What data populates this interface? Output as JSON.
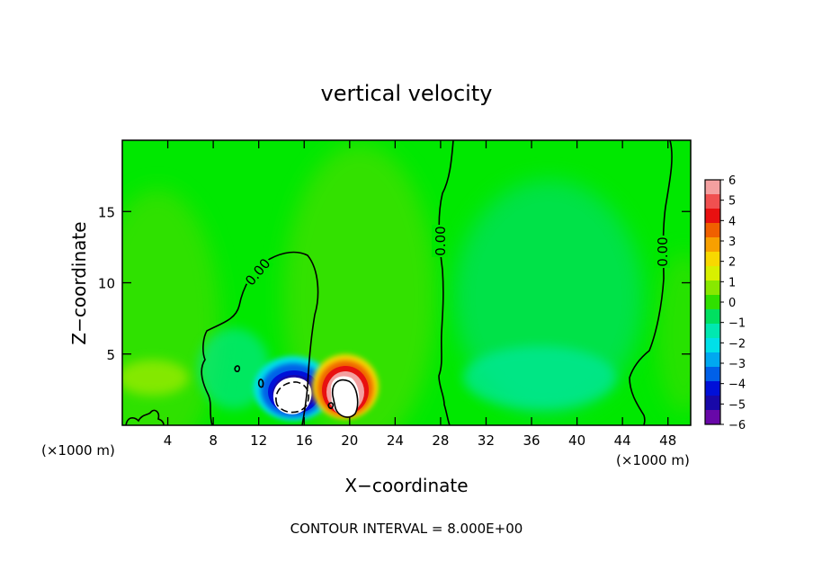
{
  "chart_data": {
    "type": "heatmap",
    "title": "vertical velocity",
    "xlabel": "X−coordinate",
    "ylabel": "Z−coordinate",
    "x_unit_label": "(×1000 m)",
    "x_unit_label_right": "(×1000 m)",
    "footer": "CONTOUR INTERVAL = 8.000E+00",
    "xlim": [
      0,
      50
    ],
    "ylim": [
      0,
      20
    ],
    "x_ticks": [
      4,
      8,
      12,
      16,
      20,
      24,
      28,
      32,
      36,
      40,
      44,
      48
    ],
    "y_ticks": [
      5,
      10,
      15
    ],
    "x_tick_labels": [
      "4",
      "8",
      "12",
      "16",
      "20",
      "24",
      "28",
      "32",
      "36",
      "40",
      "44",
      "48"
    ],
    "y_tick_labels": [
      "5",
      "10",
      "15"
    ],
    "colorbar": {
      "min": -6,
      "max": 6,
      "labels": [
        "6",
        "5",
        "4",
        "3",
        "2",
        "1",
        "0",
        "−1",
        "−2",
        "−3",
        "−4",
        "−5",
        "−6"
      ],
      "colors": [
        "#f4a0a0",
        "#f05050",
        "#e81010",
        "#f06000",
        "#f8a000",
        "#f8d800",
        "#d8f000",
        "#88e800",
        "#30e000",
        "#00e060",
        "#00e8b0",
        "#00e0e8",
        "#00a8f0",
        "#0060e8",
        "#0010d8",
        "#1808a8",
        "#6808a8"
      ]
    },
    "contour_labels": [
      "0.00",
      "0.00",
      "0.00"
    ],
    "features": {
      "updraft_core": {
        "x": 19.8,
        "z": 2.6,
        "peak": 6
      },
      "downdraft_core": {
        "x": 15.0,
        "z": 2.4,
        "peak": -6
      }
    }
  }
}
